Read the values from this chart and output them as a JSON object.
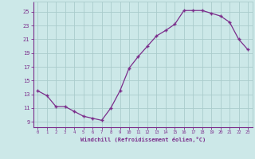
{
  "x": [
    0,
    1,
    2,
    3,
    4,
    5,
    6,
    7,
    8,
    9,
    10,
    11,
    12,
    13,
    14,
    15,
    16,
    17,
    18,
    19,
    20,
    21,
    22,
    23
  ],
  "y": [
    13.5,
    12.8,
    11.2,
    11.2,
    10.5,
    9.8,
    9.5,
    9.2,
    11.0,
    13.5,
    16.8,
    18.5,
    20.0,
    21.5,
    22.3,
    23.2,
    25.2,
    25.2,
    25.2,
    24.8,
    24.4,
    23.5,
    21.0,
    19.5
  ],
  "line_color": "#7b2d8b",
  "bg_color": "#cce8e8",
  "grid_color": "#aacccc",
  "xlabel": "Windchill (Refroidissement éolien,°C)",
  "yticks": [
    9,
    11,
    13,
    15,
    17,
    19,
    21,
    23,
    25
  ],
  "ylim": [
    8.2,
    26.5
  ],
  "xlim": [
    -0.5,
    23.5
  ],
  "tick_color": "#7b2d8b",
  "label_color": "#7b2d8b",
  "spine_color": "#7b2d8b"
}
